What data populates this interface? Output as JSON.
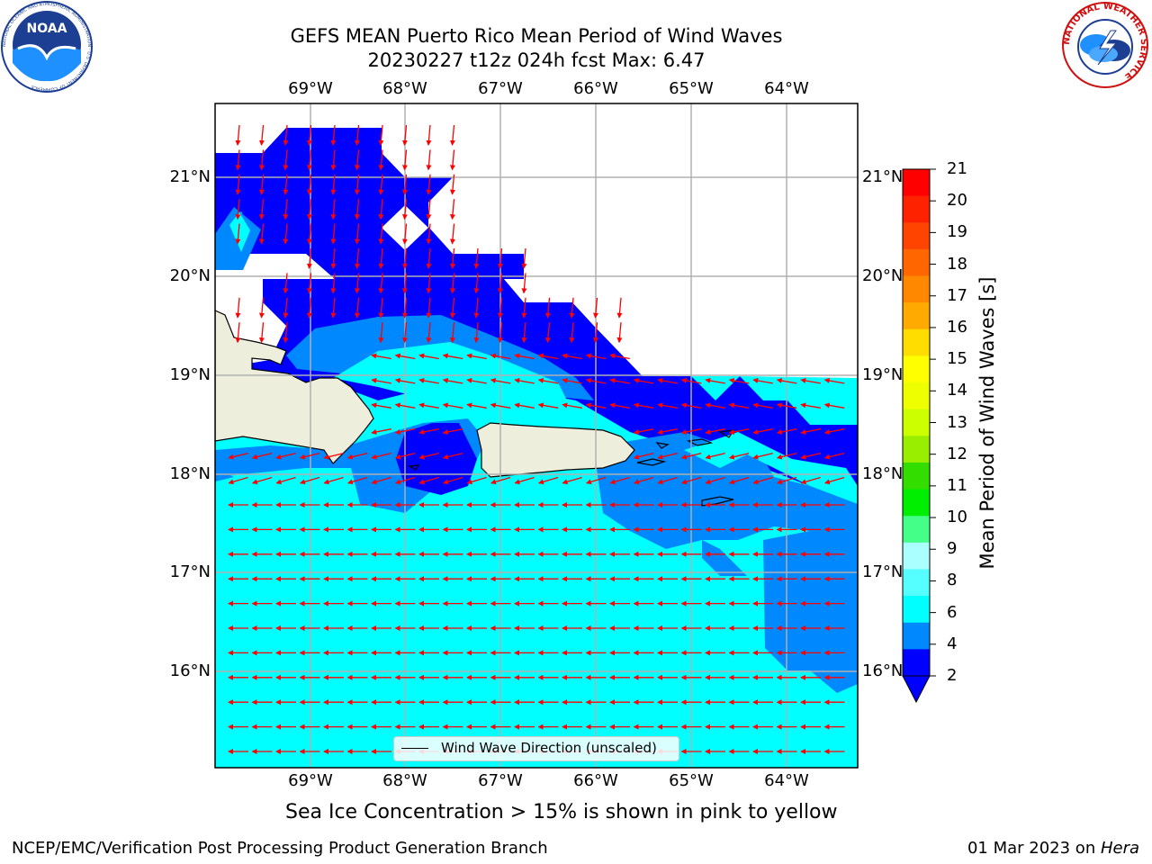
{
  "title": {
    "line1": "GEFS MEAN Puerto Rico Mean Period of Wind Waves",
    "line2": "20230227 t12z 024h fcst   Max: 6.47"
  },
  "axes": {
    "lon_ticks": [
      "69°W",
      "68°W",
      "67°W",
      "66°W",
      "65°W",
      "64°W"
    ],
    "lat_ticks": [
      "21°N",
      "20°N",
      "19°N",
      "18°N",
      "17°N",
      "16°N"
    ]
  },
  "colorbar": {
    "label": "Mean Period of Wind Waves [s]",
    "ticks": [
      "21",
      "20",
      "19",
      "18",
      "17",
      "16",
      "15",
      "14",
      "13",
      "12",
      "11",
      "10",
      "9",
      "8",
      "6",
      "4",
      "2"
    ],
    "colors": [
      "#ff0000",
      "#ff2200",
      "#ff4400",
      "#ff6600",
      "#ff8800",
      "#ffaa00",
      "#ffdd00",
      "#ffff00",
      "#eeff00",
      "#ccff00",
      "#99ee00",
      "#33dd00",
      "#00ee00",
      "#44ff88",
      "#aaffff",
      "#55ffff",
      "#00ffff",
      "#0088ff",
      "#0000ff"
    ]
  },
  "legend": {
    "label": "Wind Wave Direction (unscaled)"
  },
  "subtitle": "Sea Ice Concentration > 15% is shown in pink to yellow",
  "footer": {
    "left": "NCEP/EMC/Verification Post Processing Product Generation Branch",
    "date": "01 Mar 2023 on ",
    "host": "Hera"
  },
  "logos": {
    "noaa_text": "NOAA",
    "noaa_ring": "NATIONAL OCEANIC AND ATMOSPHERIC ADMINISTRATION · U.S. DEPARTMENT OF COMMERCE",
    "nws_ring": "NATIONAL WEATHER SERVICE"
  },
  "colors": {
    "land": "#eeeedd",
    "arrow": "#ff0000",
    "level_2": "#0000ff",
    "level_4": "#0088ff",
    "level_6": "#00ffff"
  }
}
